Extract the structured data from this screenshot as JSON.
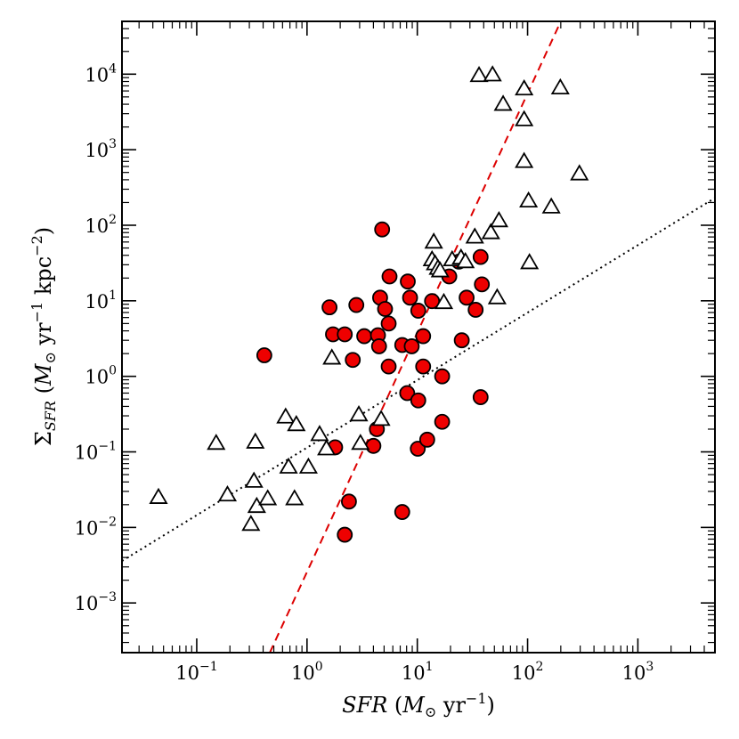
{
  "chart_data": {
    "type": "scatter",
    "title": "",
    "xlabel": {
      "var": "SFR",
      "open": " (",
      "msym": "M",
      "msub": "⊙",
      "unit": " yr",
      "exp": "−1",
      "close": ")"
    },
    "ylabel": {
      "sigma": "Σ",
      "sub": "SFR",
      "open": " (",
      "msym": "M",
      "msub": "⊙",
      "unit1": " yr",
      "exp1": "−1",
      "unit2": " kpc",
      "exp2": "−2",
      "close": ")"
    },
    "x_scale": "log",
    "y_scale": "log",
    "xlim": [
      0.021,
      5000
    ],
    "ylim": [
      0.00022,
      50000
    ],
    "x_ticks": [
      {
        "value": 0.1,
        "base": "10",
        "exp": "−1"
      },
      {
        "value": 1,
        "base": "10",
        "exp": "0"
      },
      {
        "value": 10,
        "base": "10",
        "exp": "1"
      },
      {
        "value": 100,
        "base": "10",
        "exp": "2"
      },
      {
        "value": 1000,
        "base": "10",
        "exp": "3"
      }
    ],
    "y_ticks": [
      {
        "value": 0.001,
        "base": "10",
        "exp": "−3"
      },
      {
        "value": 0.01,
        "base": "10",
        "exp": "−2"
      },
      {
        "value": 0.1,
        "base": "10",
        "exp": "−1"
      },
      {
        "value": 1,
        "base": "10",
        "exp": "0"
      },
      {
        "value": 10,
        "base": "10",
        "exp": "1"
      },
      {
        "value": 100,
        "base": "10",
        "exp": "2"
      },
      {
        "value": 1000,
        "base": "10",
        "exp": "3"
      },
      {
        "value": 10000,
        "base": "10",
        "exp": "4"
      }
    ],
    "grid": false,
    "legend": "none",
    "series": [
      {
        "marker": "circle",
        "color": "#ee0000",
        "points": [
          [
            4.8,
            88
          ],
          [
            5.6,
            21
          ],
          [
            8.2,
            18
          ],
          [
            1.6,
            8.2
          ],
          [
            2.8,
            8.8
          ],
          [
            4.6,
            11
          ],
          [
            5.1,
            7.8
          ],
          [
            8.6,
            11
          ],
          [
            10.2,
            7.4
          ],
          [
            13.6,
            9.9
          ],
          [
            1.72,
            3.6
          ],
          [
            2.2,
            3.6
          ],
          [
            3.3,
            3.4
          ],
          [
            4.4,
            3.5
          ],
          [
            4.5,
            2.5
          ],
          [
            5.5,
            5
          ],
          [
            7.3,
            2.6
          ],
          [
            8.9,
            2.5
          ],
          [
            11.3,
            3.4
          ],
          [
            0.41,
            1.9
          ],
          [
            2.6,
            1.65
          ],
          [
            5.5,
            1.35
          ],
          [
            11.3,
            1.35
          ],
          [
            16.8,
            1.0
          ],
          [
            8.1,
            0.6
          ],
          [
            10.2,
            0.48
          ],
          [
            37.5,
            0.53
          ],
          [
            19.5,
            21
          ],
          [
            23.8,
            33
          ],
          [
            37.5,
            38
          ],
          [
            38.5,
            16.5
          ],
          [
            28,
            11
          ],
          [
            33.8,
            7.6
          ],
          [
            25.3,
            3.0
          ],
          [
            16.8,
            0.25
          ],
          [
            1.8,
            0.115
          ],
          [
            4.3,
            0.2
          ],
          [
            4.0,
            0.12
          ],
          [
            10.1,
            0.11
          ],
          [
            12.3,
            0.145
          ],
          [
            2.4,
            0.022
          ],
          [
            2.2,
            0.008
          ],
          [
            7.3,
            0.016
          ]
        ]
      },
      {
        "marker": "triangle",
        "color": "#ffffff",
        "points": [
          [
            0.045,
            0.025
          ],
          [
            0.15,
            0.13
          ],
          [
            0.19,
            0.027
          ],
          [
            0.34,
            0.135
          ],
          [
            0.31,
            0.011
          ],
          [
            0.33,
            0.041
          ],
          [
            0.35,
            0.019
          ],
          [
            0.44,
            0.024
          ],
          [
            0.64,
            0.29
          ],
          [
            0.68,
            0.063
          ],
          [
            0.8,
            0.23
          ],
          [
            0.77,
            0.024
          ],
          [
            1.03,
            0.063
          ],
          [
            1.3,
            0.17
          ],
          [
            1.5,
            0.11
          ],
          [
            1.68,
            1.75
          ],
          [
            2.95,
            0.31
          ],
          [
            3.05,
            0.13
          ],
          [
            4.7,
            0.27
          ],
          [
            14.1,
            60
          ],
          [
            13.6,
            35
          ],
          [
            14.5,
            31
          ],
          [
            15.4,
            27
          ],
          [
            16.1,
            25
          ],
          [
            20.7,
            35
          ],
          [
            24.9,
            37
          ],
          [
            27.3,
            33
          ],
          [
            17.4,
            9.5
          ],
          [
            33.2,
            70
          ],
          [
            46.4,
            80
          ],
          [
            55,
            115
          ],
          [
            53,
            11
          ],
          [
            36.3,
            9600
          ],
          [
            48.1,
            9800
          ],
          [
            60,
            4000
          ],
          [
            93,
            6400
          ],
          [
            93,
            2500
          ],
          [
            93,
            700
          ],
          [
            198,
            6600
          ],
          [
            102,
            210
          ],
          [
            104,
            32
          ],
          [
            164,
            175
          ],
          [
            295,
            480
          ]
        ]
      }
    ],
    "fit_lines": [
      {
        "style": "dashed",
        "color": "#dd0000",
        "from": [
          0.46,
          0.00022
        ],
        "to": [
          200,
          50000
        ]
      },
      {
        "style": "dotted",
        "color": "#000000",
        "from": [
          0.021,
          0.0036
        ],
        "to": [
          5000,
          230
        ]
      }
    ]
  }
}
